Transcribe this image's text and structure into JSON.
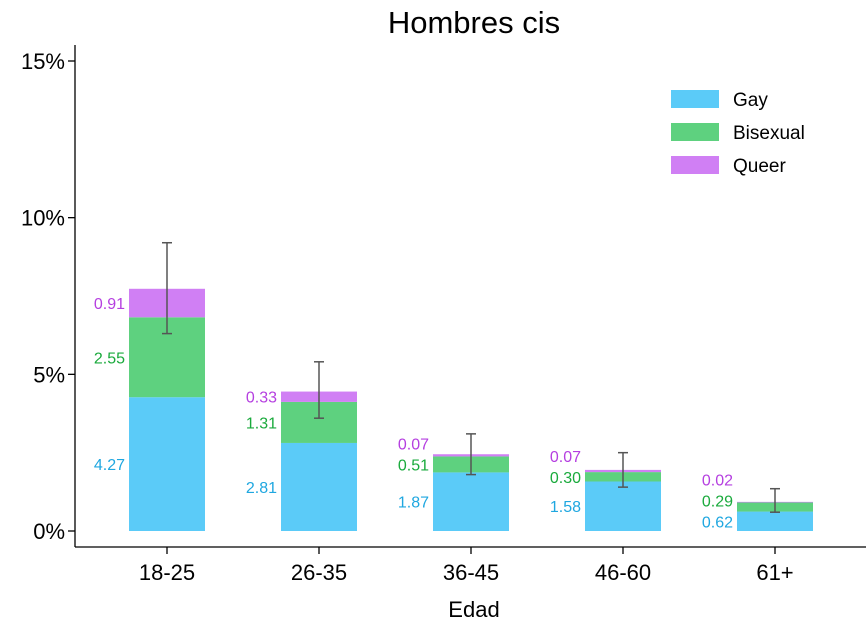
{
  "chart_data": {
    "type": "bar",
    "stacked": true,
    "title": "Hombres cis",
    "xlabel": "Edad",
    "ylabel": "",
    "ylim": [
      0,
      15
    ],
    "yticks": [
      0,
      5,
      10,
      15
    ],
    "ytick_labels": [
      "0%",
      "5%",
      "10%",
      "15%"
    ],
    "categories": [
      "18-25",
      "26-35",
      "36-45",
      "46-60",
      "61+"
    ],
    "series": [
      {
        "name": "Gay",
        "color": "#5bcbf8",
        "label_color": "#1fa7e0",
        "values": [
          4.27,
          2.81,
          1.87,
          1.58,
          0.62
        ],
        "labels": [
          "4.27",
          "2.81",
          "1.87",
          "1.58",
          "0.62"
        ]
      },
      {
        "name": "Bisexual",
        "color": "#5ed17f",
        "label_color": "#1aaa3c",
        "values": [
          2.55,
          1.31,
          0.51,
          0.3,
          0.29
        ],
        "labels": [
          "2.55",
          "1.31",
          "0.51",
          "0.30",
          "0.29"
        ]
      },
      {
        "name": "Queer",
        "color": "#d07ff4",
        "label_color": "#b53fe0",
        "values": [
          0.91,
          0.33,
          0.07,
          0.07,
          0.02
        ],
        "labels": [
          "0.91",
          "0.33",
          "0.07",
          "0.07",
          "0.02"
        ]
      }
    ],
    "error_bars": [
      {
        "low": 6.3,
        "high": 9.2
      },
      {
        "low": 3.6,
        "high": 5.4
      },
      {
        "low": 1.8,
        "high": 3.1
      },
      {
        "low": 1.4,
        "high": 2.5
      },
      {
        "low": 0.6,
        "high": 1.35
      }
    ],
    "legend_position": "top-right",
    "grid": false
  }
}
